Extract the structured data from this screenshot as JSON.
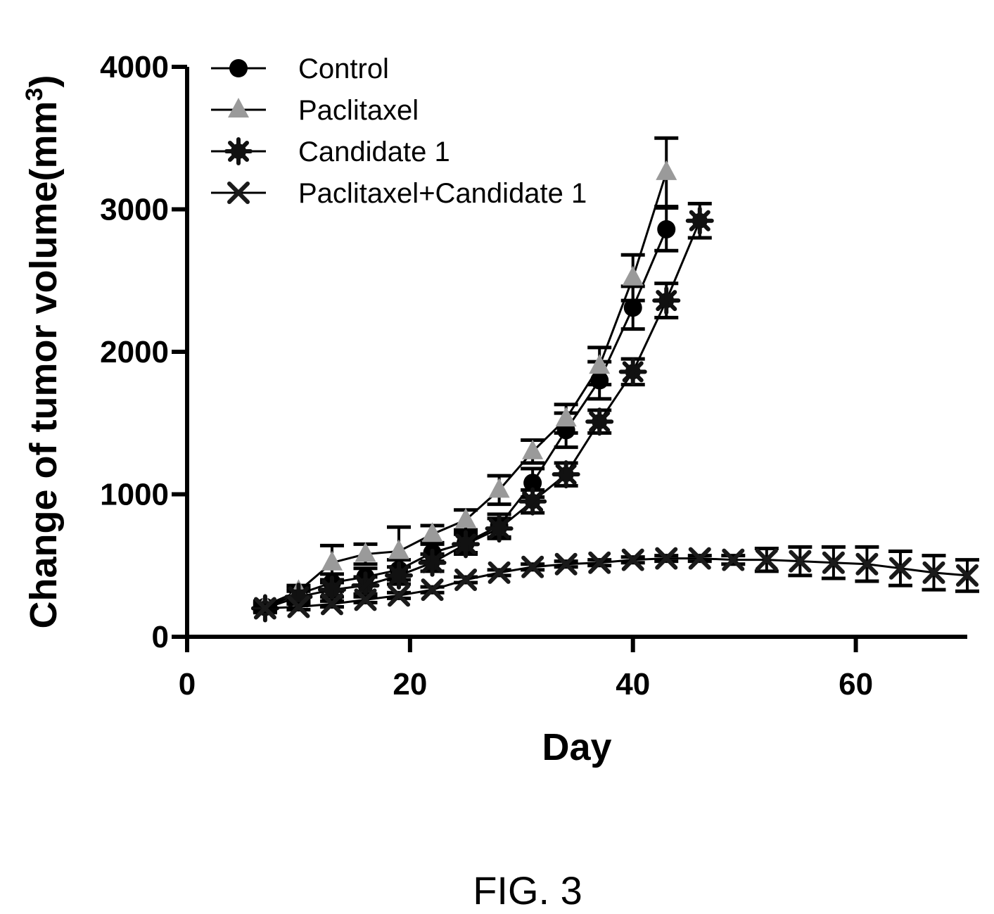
{
  "figure_label": "FIG. 3",
  "chart_data": {
    "type": "line",
    "title": "",
    "xlabel": "Day",
    "ylabel": "Change of tumor volume(mm",
    "ylabel_superscript": "3",
    "ylabel_suffix": ")",
    "xlim": [
      0,
      70
    ],
    "ylim": [
      0,
      4000
    ],
    "xticks": [
      0,
      20,
      40,
      60
    ],
    "yticks": [
      0,
      1000,
      2000,
      3000,
      4000
    ],
    "grid": false,
    "legend_position": "top-left",
    "colors": {
      "axis": "#000000",
      "Control": "#000000",
      "Paclitaxel": "#9a9a9a",
      "Candidate 1": "#111111",
      "Paclitaxel+Candidate 1": "#1a1a1a"
    },
    "series": [
      {
        "name": "Control",
        "marker": "circle",
        "x": [
          7,
          10,
          13,
          16,
          19,
          22,
          25,
          28,
          31,
          34,
          37,
          40,
          43
        ],
        "y": [
          210,
          300,
          380,
          420,
          470,
          590,
          660,
          780,
          1080,
          1450,
          1800,
          2310,
          2860
        ],
        "err": [
          30,
          40,
          60,
          60,
          70,
          60,
          70,
          80,
          100,
          120,
          130,
          150,
          150
        ]
      },
      {
        "name": "Paclitaxel",
        "marker": "triangle",
        "x": [
          7,
          10,
          13,
          16,
          19,
          22,
          25,
          28,
          31,
          34,
          37,
          40,
          43
        ],
        "y": [
          220,
          320,
          520,
          580,
          600,
          720,
          820,
          1030,
          1300,
          1530,
          1900,
          2520,
          3260
        ],
        "err": [
          30,
          40,
          120,
          70,
          170,
          60,
          70,
          100,
          80,
          100,
          130,
          160,
          240
        ]
      },
      {
        "name": "Candidate 1",
        "marker": "asterisk-filled",
        "x": [
          7,
          10,
          13,
          16,
          19,
          22,
          25,
          28,
          31,
          34,
          37,
          40,
          43,
          46
        ],
        "y": [
          200,
          280,
          330,
          360,
          430,
          520,
          650,
          760,
          950,
          1140,
          1510,
          1860,
          2360,
          2920
        ],
        "err": [
          30,
          40,
          50,
          60,
          60,
          60,
          70,
          70,
          80,
          80,
          80,
          90,
          120,
          120
        ]
      },
      {
        "name": "Paclitaxel+Candidate 1",
        "marker": "x",
        "x": [
          7,
          10,
          13,
          16,
          19,
          22,
          25,
          28,
          31,
          34,
          37,
          40,
          43,
          46,
          49,
          52,
          55,
          58,
          61,
          64,
          67,
          70
        ],
        "y": [
          200,
          210,
          230,
          260,
          290,
          330,
          400,
          450,
          490,
          510,
          520,
          540,
          550,
          550,
          540,
          540,
          530,
          520,
          510,
          480,
          450,
          430
        ],
        "err": [
          20,
          20,
          20,
          20,
          20,
          20,
          20,
          20,
          20,
          20,
          20,
          20,
          20,
          20,
          30,
          80,
          100,
          110,
          120,
          120,
          120,
          110
        ]
      }
    ]
  }
}
